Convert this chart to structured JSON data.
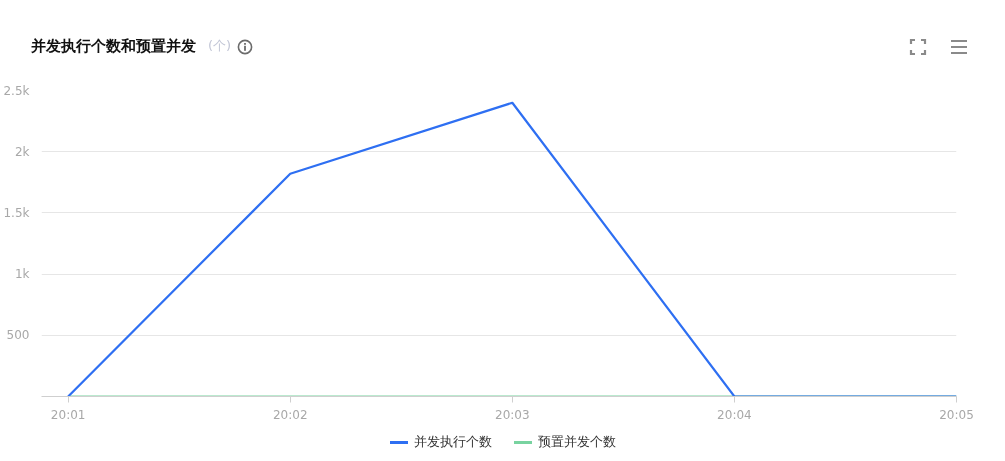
{
  "chart_data": {
    "type": "line",
    "title": "并发执行个数和预置并发",
    "subtitle": "(个)",
    "categories": [
      "20:01",
      "20:02",
      "20:03",
      "20:04",
      "20:05"
    ],
    "series": [
      {
        "name": "并发执行个数",
        "color": "#2e6ff2",
        "values": [
          0,
          1820,
          2400,
          0,
          0
        ]
      },
      {
        "name": "预置并发个数",
        "color": "#78d3a0",
        "values": [
          0,
          0,
          0,
          0,
          0
        ]
      }
    ],
    "ylim": [
      0,
      2500
    ],
    "yticks": [
      {
        "value": 0,
        "label": null
      },
      500,
      {
        "value": 1000,
        "label": "1k"
      },
      {
        "value": 1500,
        "label": "1.5k"
      },
      {
        "value": 2000,
        "label": "2k"
      },
      {
        "value": 2500,
        "label": "2.5k"
      }
    ],
    "grid": "y",
    "legend": "bottom",
    "line_style": "solid"
  }
}
